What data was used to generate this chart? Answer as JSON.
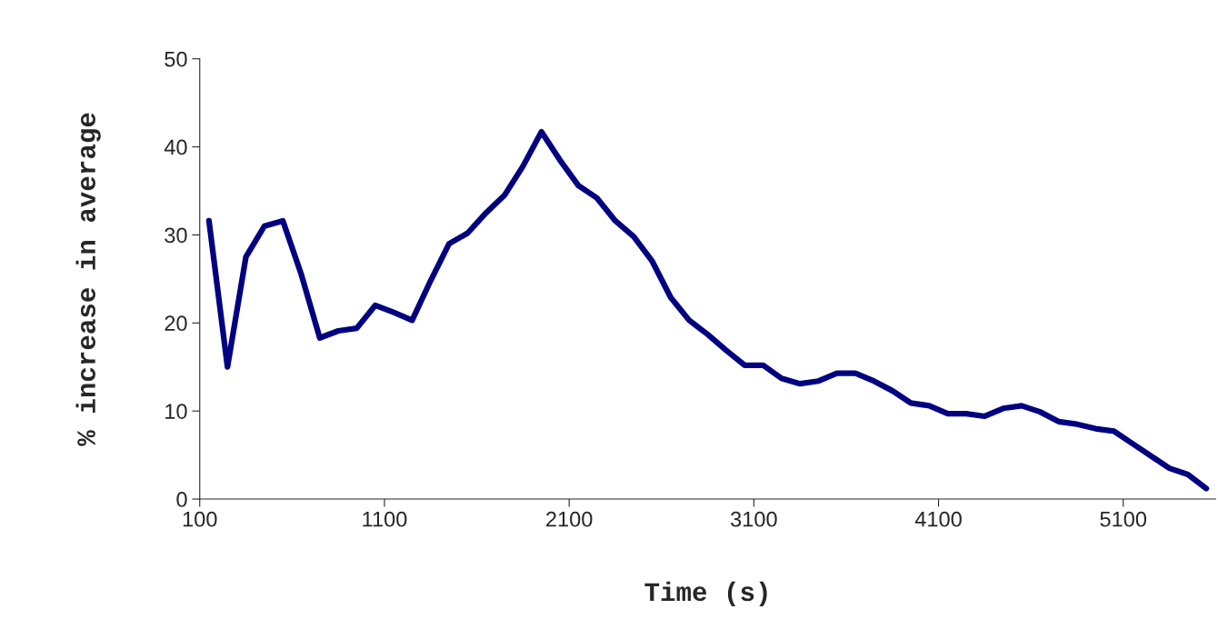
{
  "chart_data": {
    "type": "line",
    "xlabel": "Time (s)",
    "ylabel": "% increase in average",
    "x": [
      150,
      250,
      350,
      450,
      550,
      650,
      750,
      850,
      950,
      1050,
      1150,
      1250,
      1350,
      1450,
      1550,
      1650,
      1750,
      1850,
      1950,
      2050,
      2150,
      2250,
      2350,
      2450,
      2550,
      2650,
      2750,
      2850,
      2950,
      3050,
      3150,
      3250,
      3350,
      3450,
      3550,
      3650,
      3750,
      3850,
      3950,
      4050,
      4150,
      4250,
      4350,
      4450,
      4550,
      4650,
      4750,
      4850,
      4950,
      5050,
      5150,
      5250,
      5350,
      5450,
      5550
    ],
    "series": [
      {
        "color": "#000080",
        "values": [
          31.6,
          15,
          27.5,
          31,
          31.6,
          25.5,
          18.3,
          19.1,
          19.4,
          22,
          21.2,
          20.3,
          24.8,
          29,
          30.2,
          32.5,
          34.5,
          37.8,
          41.7,
          38.5,
          35.6,
          34.2,
          31.6,
          29.8,
          27,
          22.9,
          20.3,
          18.7,
          16.9,
          15.2,
          15.2,
          13.7,
          13.1,
          13.4,
          14.3,
          14.3,
          13.4,
          12.3,
          10.9,
          10.6,
          9.7,
          9.7,
          9.4,
          10.3,
          10.6,
          9.9,
          8.8,
          8.5,
          8.0,
          7.7,
          6.3,
          4.9,
          3.5,
          2.8,
          1.2
        ]
      }
    ],
    "xlim": [
      100,
      5600
    ],
    "ylim": [
      0,
      50
    ],
    "xticks": [
      100,
      1100,
      2100,
      3100,
      4100,
      5100
    ],
    "yticks": [
      0,
      10,
      20,
      30,
      40,
      50
    ],
    "grid": false,
    "legend": false,
    "marker": "none",
    "line_style": "solid"
  }
}
